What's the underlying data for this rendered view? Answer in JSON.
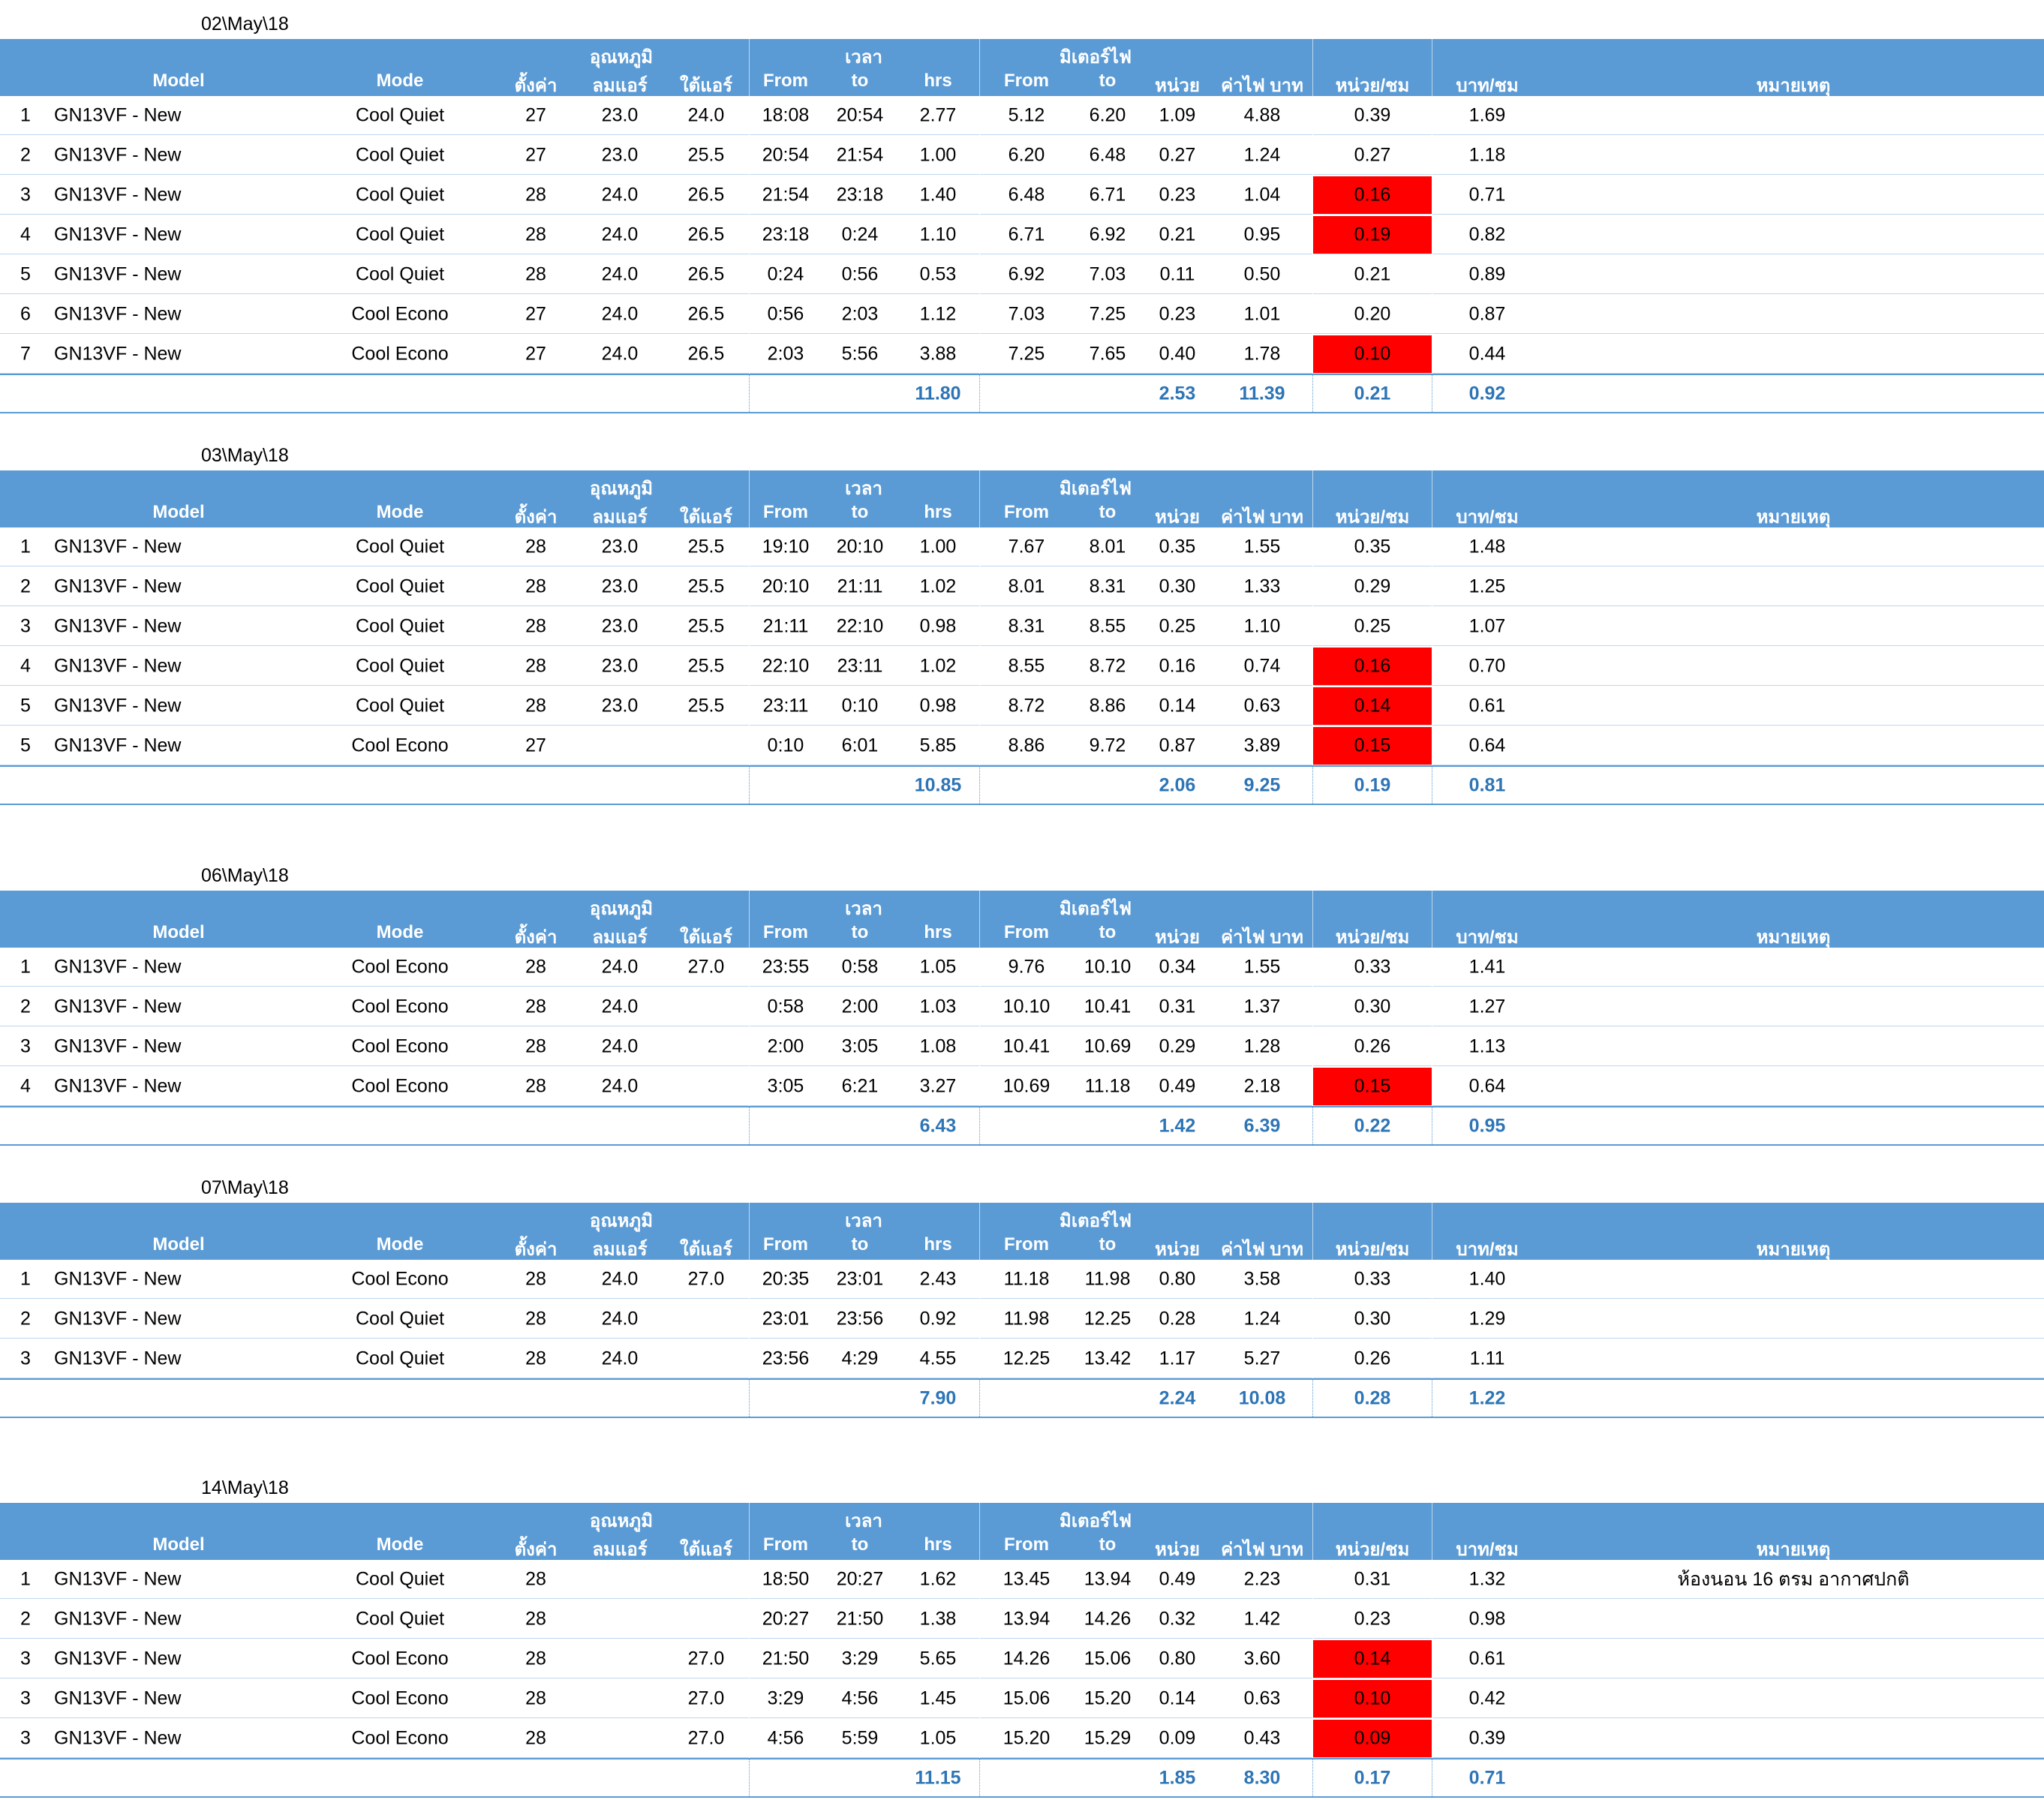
{
  "headers": {
    "model": "Model",
    "mode": "Mode",
    "setting": "ตั้งค่า",
    "temp_group": "อุณหภูมิ",
    "air_out": "ลมแอร์",
    "under_air": "ใต้แอร์",
    "time_group": "เวลา",
    "from": "From",
    "to": "to",
    "hrs": "hrs",
    "meter_group": "มิเตอร์ไฟ",
    "meter_from": "From",
    "meter_to": "to",
    "unit": "หน่วย",
    "cost": "ค่าไฟ บาท",
    "unit_per_hr": "หน่วย/ชม",
    "baht_per_hr": "บาท/ชม",
    "remark": "หมายเหตุ"
  },
  "colors": {
    "header_bg": "#5b9bd5",
    "highlight": "#ff0000",
    "total_text": "#2e75b6"
  },
  "sections": [
    {
      "date": "02\\May\\18",
      "rows": [
        {
          "no": "1",
          "model": "GN13VF - New",
          "mode": "Cool Quiet",
          "set": "27",
          "air": "23.0",
          "under": "24.0",
          "from": "18:08",
          "to": "20:54",
          "hrs": "2.77",
          "mfrom": "5.12",
          "mto": "6.20",
          "unit": "1.09",
          "cost": "4.88",
          "uph": "0.39",
          "bph": "1.69",
          "remark": "",
          "hl": false
        },
        {
          "no": "2",
          "model": "GN13VF - New",
          "mode": "Cool Quiet",
          "set": "27",
          "air": "23.0",
          "under": "25.5",
          "from": "20:54",
          "to": "21:54",
          "hrs": "1.00",
          "mfrom": "6.20",
          "mto": "6.48",
          "unit": "0.27",
          "cost": "1.24",
          "uph": "0.27",
          "bph": "1.18",
          "remark": "",
          "hl": false
        },
        {
          "no": "3",
          "model": "GN13VF - New",
          "mode": "Cool Quiet",
          "set": "28",
          "air": "24.0",
          "under": "26.5",
          "from": "21:54",
          "to": "23:18",
          "hrs": "1.40",
          "mfrom": "6.48",
          "mto": "6.71",
          "unit": "0.23",
          "cost": "1.04",
          "uph": "0.16",
          "bph": "0.71",
          "remark": "",
          "hl": true
        },
        {
          "no": "4",
          "model": "GN13VF - New",
          "mode": "Cool Quiet",
          "set": "28",
          "air": "24.0",
          "under": "26.5",
          "from": "23:18",
          "to": "0:24",
          "hrs": "1.10",
          "mfrom": "6.71",
          "mto": "6.92",
          "unit": "0.21",
          "cost": "0.95",
          "uph": "0.19",
          "bph": "0.82",
          "remark": "",
          "hl": true
        },
        {
          "no": "5",
          "model": "GN13VF - New",
          "mode": "Cool Quiet",
          "set": "28",
          "air": "24.0",
          "under": "26.5",
          "from": "0:24",
          "to": "0:56",
          "hrs": "0.53",
          "mfrom": "6.92",
          "mto": "7.03",
          "unit": "0.11",
          "cost": "0.50",
          "uph": "0.21",
          "bph": "0.89",
          "remark": "",
          "hl": false
        },
        {
          "no": "6",
          "model": "GN13VF - New",
          "mode": "Cool Econo",
          "set": "27",
          "air": "24.0",
          "under": "26.5",
          "from": "0:56",
          "to": "2:03",
          "hrs": "1.12",
          "mfrom": "7.03",
          "mto": "7.25",
          "unit": "0.23",
          "cost": "1.01",
          "uph": "0.20",
          "bph": "0.87",
          "remark": "",
          "hl": false
        },
        {
          "no": "7",
          "model": "GN13VF - New",
          "mode": "Cool Econo",
          "set": "27",
          "air": "24.0",
          "under": "26.5",
          "from": "2:03",
          "to": "5:56",
          "hrs": "3.88",
          "mfrom": "7.25",
          "mto": "7.65",
          "unit": "0.40",
          "cost": "1.78",
          "uph": "0.10",
          "bph": "0.44",
          "remark": "",
          "hl": true
        }
      ],
      "totals": {
        "hrs": "11.80",
        "unit": "2.53",
        "cost": "11.39",
        "uph": "0.21",
        "bph": "0.92"
      }
    },
    {
      "date": "03\\May\\18",
      "rows": [
        {
          "no": "1",
          "model": "GN13VF - New",
          "mode": "Cool Quiet",
          "set": "28",
          "air": "23.0",
          "under": "25.5",
          "from": "19:10",
          "to": "20:10",
          "hrs": "1.00",
          "mfrom": "7.67",
          "mto": "8.01",
          "unit": "0.35",
          "cost": "1.55",
          "uph": "0.35",
          "bph": "1.48",
          "remark": "",
          "hl": false
        },
        {
          "no": "2",
          "model": "GN13VF - New",
          "mode": "Cool Quiet",
          "set": "28",
          "air": "23.0",
          "under": "25.5",
          "from": "20:10",
          "to": "21:11",
          "hrs": "1.02",
          "mfrom": "8.01",
          "mto": "8.31",
          "unit": "0.30",
          "cost": "1.33",
          "uph": "0.29",
          "bph": "1.25",
          "remark": "",
          "hl": false
        },
        {
          "no": "3",
          "model": "GN13VF - New",
          "mode": "Cool Quiet",
          "set": "28",
          "air": "23.0",
          "under": "25.5",
          "from": "21:11",
          "to": "22:10",
          "hrs": "0.98",
          "mfrom": "8.31",
          "mto": "8.55",
          "unit": "0.25",
          "cost": "1.10",
          "uph": "0.25",
          "bph": "1.07",
          "remark": "",
          "hl": false
        },
        {
          "no": "4",
          "model": "GN13VF - New",
          "mode": "Cool Quiet",
          "set": "28",
          "air": "23.0",
          "under": "25.5",
          "from": "22:10",
          "to": "23:11",
          "hrs": "1.02",
          "mfrom": "8.55",
          "mto": "8.72",
          "unit": "0.16",
          "cost": "0.74",
          "uph": "0.16",
          "bph": "0.70",
          "remark": "",
          "hl": true
        },
        {
          "no": "5",
          "model": "GN13VF - New",
          "mode": "Cool Quiet",
          "set": "28",
          "air": "23.0",
          "under": "25.5",
          "from": "23:11",
          "to": "0:10",
          "hrs": "0.98",
          "mfrom": "8.72",
          "mto": "8.86",
          "unit": "0.14",
          "cost": "0.63",
          "uph": "0.14",
          "bph": "0.61",
          "remark": "",
          "hl": true
        },
        {
          "no": "5",
          "model": "GN13VF - New",
          "mode": "Cool Econo",
          "set": "27",
          "air": "",
          "under": "",
          "from": "0:10",
          "to": "6:01",
          "hrs": "5.85",
          "mfrom": "8.86",
          "mto": "9.72",
          "unit": "0.87",
          "cost": "3.89",
          "uph": "0.15",
          "bph": "0.64",
          "remark": "",
          "hl": true
        }
      ],
      "totals": {
        "hrs": "10.85",
        "unit": "2.06",
        "cost": "9.25",
        "uph": "0.19",
        "bph": "0.81"
      }
    },
    {
      "date": "06\\May\\18",
      "rows": [
        {
          "no": "1",
          "model": "GN13VF - New",
          "mode": "Cool Econo",
          "set": "28",
          "air": "24.0",
          "under": "27.0",
          "from": "23:55",
          "to": "0:58",
          "hrs": "1.05",
          "mfrom": "9.76",
          "mto": "10.10",
          "unit": "0.34",
          "cost": "1.55",
          "uph": "0.33",
          "bph": "1.41",
          "remark": "",
          "hl": false
        },
        {
          "no": "2",
          "model": "GN13VF - New",
          "mode": "Cool Econo",
          "set": "28",
          "air": "24.0",
          "under": "",
          "from": "0:58",
          "to": "2:00",
          "hrs": "1.03",
          "mfrom": "10.10",
          "mto": "10.41",
          "unit": "0.31",
          "cost": "1.37",
          "uph": "0.30",
          "bph": "1.27",
          "remark": "",
          "hl": false
        },
        {
          "no": "3",
          "model": "GN13VF - New",
          "mode": "Cool Econo",
          "set": "28",
          "air": "24.0",
          "under": "",
          "from": "2:00",
          "to": "3:05",
          "hrs": "1.08",
          "mfrom": "10.41",
          "mto": "10.69",
          "unit": "0.29",
          "cost": "1.28",
          "uph": "0.26",
          "bph": "1.13",
          "remark": "",
          "hl": false
        },
        {
          "no": "4",
          "model": "GN13VF - New",
          "mode": "Cool Econo",
          "set": "28",
          "air": "24.0",
          "under": "",
          "from": "3:05",
          "to": "6:21",
          "hrs": "3.27",
          "mfrom": "10.69",
          "mto": "11.18",
          "unit": "0.49",
          "cost": "2.18",
          "uph": "0.15",
          "bph": "0.64",
          "remark": "",
          "hl": true
        }
      ],
      "totals": {
        "hrs": "6.43",
        "unit": "1.42",
        "cost": "6.39",
        "uph": "0.22",
        "bph": "0.95"
      }
    },
    {
      "date": "07\\May\\18",
      "rows": [
        {
          "no": "1",
          "model": "GN13VF - New",
          "mode": "Cool Econo",
          "set": "28",
          "air": "24.0",
          "under": "27.0",
          "from": "20:35",
          "to": "23:01",
          "hrs": "2.43",
          "mfrom": "11.18",
          "mto": "11.98",
          "unit": "0.80",
          "cost": "3.58",
          "uph": "0.33",
          "bph": "1.40",
          "remark": "",
          "hl": false
        },
        {
          "no": "2",
          "model": "GN13VF - New",
          "mode": "Cool Quiet",
          "set": "28",
          "air": "24.0",
          "under": "",
          "from": "23:01",
          "to": "23:56",
          "hrs": "0.92",
          "mfrom": "11.98",
          "mto": "12.25",
          "unit": "0.28",
          "cost": "1.24",
          "uph": "0.30",
          "bph": "1.29",
          "remark": "",
          "hl": false
        },
        {
          "no": "3",
          "model": "GN13VF - New",
          "mode": "Cool Quiet",
          "set": "28",
          "air": "24.0",
          "under": "",
          "from": "23:56",
          "to": "4:29",
          "hrs": "4.55",
          "mfrom": "12.25",
          "mto": "13.42",
          "unit": "1.17",
          "cost": "5.27",
          "uph": "0.26",
          "bph": "1.11",
          "remark": "",
          "hl": false
        }
      ],
      "totals": {
        "hrs": "7.90",
        "unit": "2.24",
        "cost": "10.08",
        "uph": "0.28",
        "bph": "1.22"
      }
    },
    {
      "date": "14\\May\\18",
      "rows": [
        {
          "no": "1",
          "model": "GN13VF - New",
          "mode": "Cool Quiet",
          "set": "28",
          "air": "",
          "under": "",
          "from": "18:50",
          "to": "20:27",
          "hrs": "1.62",
          "mfrom": "13.45",
          "mto": "13.94",
          "unit": "0.49",
          "cost": "2.23",
          "uph": "0.31",
          "bph": "1.32",
          "remark": "ห้องนอน 16 ตรม อากาศปกติ",
          "hl": false
        },
        {
          "no": "2",
          "model": "GN13VF - New",
          "mode": "Cool Quiet",
          "set": "28",
          "air": "",
          "under": "",
          "from": "20:27",
          "to": "21:50",
          "hrs": "1.38",
          "mfrom": "13.94",
          "mto": "14.26",
          "unit": "0.32",
          "cost": "1.42",
          "uph": "0.23",
          "bph": "0.98",
          "remark": "",
          "hl": false
        },
        {
          "no": "3",
          "model": "GN13VF - New",
          "mode": "Cool Econo",
          "set": "28",
          "air": "",
          "under": "27.0",
          "from": "21:50",
          "to": "3:29",
          "hrs": "5.65",
          "mfrom": "14.26",
          "mto": "15.06",
          "unit": "0.80",
          "cost": "3.60",
          "uph": "0.14",
          "bph": "0.61",
          "remark": "",
          "hl": true
        },
        {
          "no": "3",
          "model": "GN13VF - New",
          "mode": "Cool Econo",
          "set": "28",
          "air": "",
          "under": "27.0",
          "from": "3:29",
          "to": "4:56",
          "hrs": "1.45",
          "mfrom": "15.06",
          "mto": "15.20",
          "unit": "0.14",
          "cost": "0.63",
          "uph": "0.10",
          "bph": "0.42",
          "remark": "",
          "hl": true
        },
        {
          "no": "3",
          "model": "GN13VF - New",
          "mode": "Cool Econo",
          "set": "28",
          "air": "",
          "under": "27.0",
          "from": "4:56",
          "to": "5:59",
          "hrs": "1.05",
          "mfrom": "15.20",
          "mto": "15.29",
          "unit": "0.09",
          "cost": "0.43",
          "uph": "0.09",
          "bph": "0.39",
          "remark": "",
          "hl": true
        }
      ],
      "totals": {
        "hrs": "11.15",
        "unit": "1.85",
        "cost": "8.30",
        "uph": "0.17",
        "bph": "0.71"
      }
    }
  ]
}
